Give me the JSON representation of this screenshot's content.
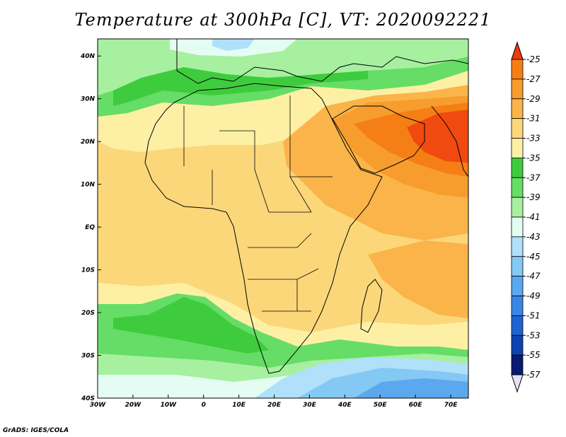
{
  "title": "Temperature at 300hPa [C], VT: 2020092221",
  "credit": "GrADS: IGES/COLA",
  "map": {
    "lon_range": [
      -30,
      75
    ],
    "lat_range": [
      -40,
      44
    ],
    "lon_ticks": [
      {
        "value": -30,
        "label": "30W"
      },
      {
        "value": -20,
        "label": "20W"
      },
      {
        "value": -10,
        "label": "10W"
      },
      {
        "value": 0,
        "label": "0"
      },
      {
        "value": 10,
        "label": "10E"
      },
      {
        "value": 20,
        "label": "20E"
      },
      {
        "value": 30,
        "label": "30E"
      },
      {
        "value": 40,
        "label": "40E"
      },
      {
        "value": 50,
        "label": "50E"
      },
      {
        "value": 60,
        "label": "60E"
      },
      {
        "value": 70,
        "label": "70E"
      }
    ],
    "lat_ticks": [
      {
        "value": 40,
        "label": "40N"
      },
      {
        "value": 30,
        "label": "30N"
      },
      {
        "value": 20,
        "label": "20N"
      },
      {
        "value": 10,
        "label": "10N"
      },
      {
        "value": 0,
        "label": "EQ"
      },
      {
        "value": -10,
        "label": "10S"
      },
      {
        "value": -20,
        "label": "20S"
      },
      {
        "value": -30,
        "label": "30S"
      },
      {
        "value": -40,
        "label": "40S"
      }
    ]
  },
  "colorbar": {
    "levels": [
      {
        "label": "-25",
        "color": "#f04a10"
      },
      {
        "label": "-27",
        "color": "#f57f14"
      },
      {
        "label": "-29",
        "color": "#f79d2d"
      },
      {
        "label": "-31",
        "color": "#fab44a"
      },
      {
        "label": "-33",
        "color": "#fcd77a"
      },
      {
        "label": "-35",
        "color": "#fdf0a5"
      },
      {
        "label": "-37",
        "color": "#3ecc3e"
      },
      {
        "label": "-39",
        "color": "#66dd66"
      },
      {
        "label": "-41",
        "color": "#a6f0a0"
      },
      {
        "label": "-43",
        "color": "#e4fdf2"
      },
      {
        "label": "-45",
        "color": "#b0e0fa"
      },
      {
        "label": "-47",
        "color": "#84c8f4"
      },
      {
        "label": "-49",
        "color": "#5ca8ee"
      },
      {
        "label": "-51",
        "color": "#3a86e4"
      },
      {
        "label": "-53",
        "color": "#1f62d2"
      },
      {
        "label": "-55",
        "color": "#0d44b0"
      },
      {
        "label": "-57",
        "color": "#0a1a70"
      }
    ],
    "top_color": "#f03a10",
    "bottom_color": "#e6e0fa"
  }
}
